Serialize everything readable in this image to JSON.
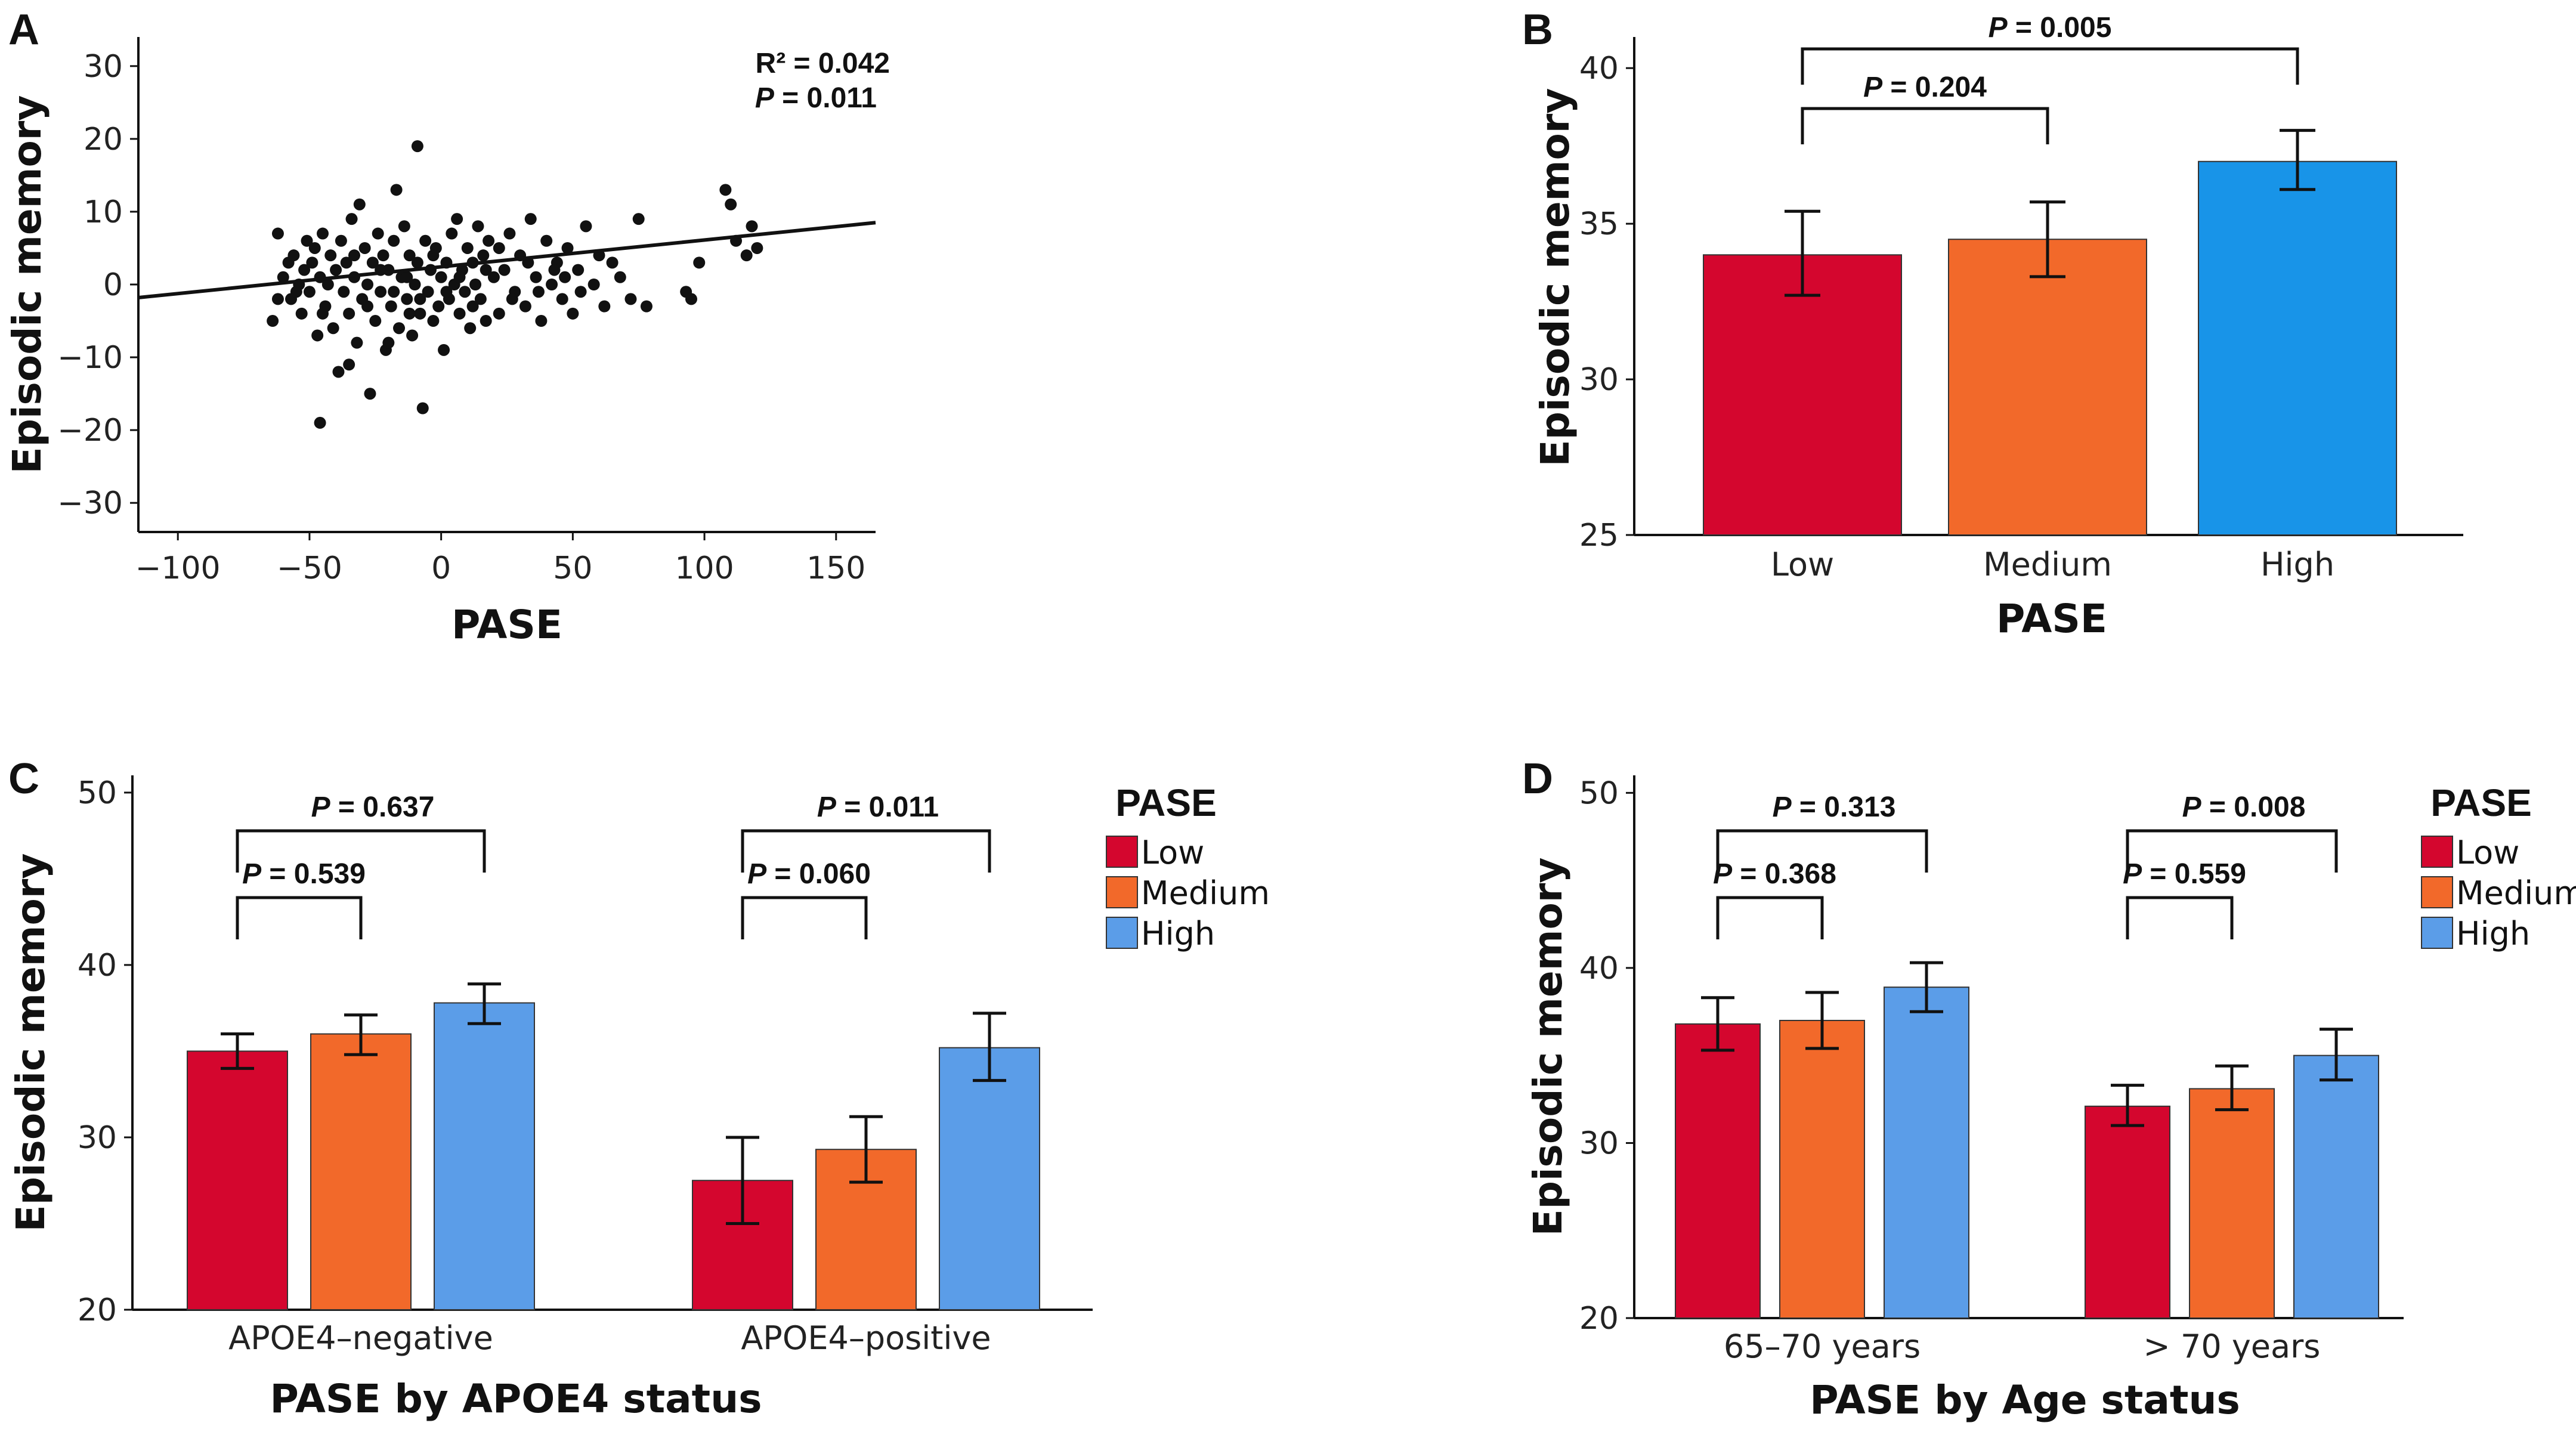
{
  "colors": {
    "low": "#d4062e",
    "medium": "#f2692a",
    "high_b": "#1894e8",
    "high": "#5b9de8",
    "ink": "#111111"
  },
  "chart_data": [
    {
      "panel": "A",
      "type": "scatter",
      "xlabel": "PASE",
      "ylabel": "Episodic memory",
      "xlim": [
        -115,
        165
      ],
      "ylim": [
        -34,
        34
      ],
      "xticks": [
        -100,
        -50,
        0,
        50,
        100,
        150
      ],
      "yticks": [
        -30,
        -20,
        -10,
        0,
        10,
        20,
        30
      ],
      "xtick_labels": [
        "−100",
        "−50",
        "0",
        "50",
        "100",
        "150"
      ],
      "ytick_labels": [
        "−30",
        "−20",
        "−10",
        "0",
        "10",
        "20",
        "30"
      ],
      "stats": {
        "r2_label": "R² = 0.042",
        "p_italic": "P",
        "p_value": " =  0.011"
      },
      "fit_line": {
        "x": [
          -115,
          165
        ],
        "y": [
          -1.8,
          8.5
        ]
      },
      "points": [
        [
          -64,
          -5
        ],
        [
          -62,
          7
        ],
        [
          -60,
          1
        ],
        [
          -58,
          3
        ],
        [
          -57,
          -2
        ],
        [
          -56,
          4
        ],
        [
          -54,
          0
        ],
        [
          -53,
          -4
        ],
        [
          -52,
          2
        ],
        [
          -51,
          6
        ],
        [
          -50,
          -1
        ],
        [
          -49,
          3
        ],
        [
          -48,
          5
        ],
        [
          -47,
          -7
        ],
        [
          -46,
          1
        ],
        [
          -46,
          -19
        ],
        [
          -45,
          7
        ],
        [
          -44,
          -3
        ],
        [
          -43,
          0
        ],
        [
          -42,
          4
        ],
        [
          -41,
          -6
        ],
        [
          -40,
          2
        ],
        [
          -39,
          -12
        ],
        [
          -38,
          6
        ],
        [
          -37,
          -1
        ],
        [
          -36,
          3
        ],
        [
          -35,
          -4
        ],
        [
          -34,
          9
        ],
        [
          -33,
          1
        ],
        [
          -32,
          -8
        ],
        [
          -31,
          11
        ],
        [
          -30,
          -2
        ],
        [
          -29,
          5
        ],
        [
          -28,
          0
        ],
        [
          -27,
          -15
        ],
        [
          -26,
          3
        ],
        [
          -25,
          -5
        ],
        [
          -24,
          7
        ],
        [
          -23,
          -1
        ],
        [
          -22,
          4
        ],
        [
          -21,
          -9
        ],
        [
          -20,
          2
        ],
        [
          -19,
          -3
        ],
        [
          -18,
          6
        ],
        [
          -17,
          13
        ],
        [
          -16,
          -6
        ],
        [
          -15,
          1
        ],
        [
          -14,
          8
        ],
        [
          -13,
          -2
        ],
        [
          -12,
          4
        ],
        [
          -11,
          -7
        ],
        [
          -10,
          0
        ],
        [
          -9,
          3
        ],
        [
          -8,
          -4
        ],
        [
          -7,
          -17
        ],
        [
          -6,
          6
        ],
        [
          -5,
          -1
        ],
        [
          -4,
          2
        ],
        [
          -3,
          -5
        ],
        [
          -2,
          5
        ],
        [
          -1,
          -3
        ],
        [
          0,
          1
        ],
        [
          1,
          -9
        ],
        [
          2,
          3
        ],
        [
          3,
          -2
        ],
        [
          4,
          7
        ],
        [
          5,
          0
        ],
        [
          6,
          9
        ],
        [
          7,
          -4
        ],
        [
          8,
          2
        ],
        [
          9,
          -1
        ],
        [
          10,
          5
        ],
        [
          11,
          -6
        ],
        [
          12,
          3
        ],
        [
          13,
          0
        ],
        [
          14,
          8
        ],
        [
          15,
          -2
        ],
        [
          16,
          4
        ],
        [
          17,
          -5
        ],
        [
          18,
          6
        ],
        [
          -9,
          19
        ],
        [
          -62,
          -2
        ],
        [
          -35,
          -11
        ],
        [
          -20,
          -8
        ],
        [
          -12,
          -4
        ],
        [
          20,
          1
        ],
        [
          22,
          -4
        ],
        [
          24,
          2
        ],
        [
          26,
          7
        ],
        [
          28,
          -1
        ],
        [
          30,
          4
        ],
        [
          32,
          -3
        ],
        [
          34,
          9
        ],
        [
          36,
          1
        ],
        [
          38,
          -5
        ],
        [
          40,
          6
        ],
        [
          42,
          0
        ],
        [
          44,
          3
        ],
        [
          46,
          -2
        ],
        [
          48,
          5
        ],
        [
          50,
          -4
        ],
        [
          52,
          2
        ],
        [
          55,
          8
        ],
        [
          58,
          0
        ],
        [
          60,
          4
        ],
        [
          62,
          -3
        ],
        [
          65,
          3
        ],
        [
          68,
          1
        ],
        [
          72,
          -2
        ],
        [
          75,
          9
        ],
        [
          78,
          -3
        ],
        [
          93,
          -1
        ],
        [
          95,
          -2
        ],
        [
          98,
          3
        ],
        [
          108,
          13
        ],
        [
          110,
          11
        ],
        [
          112,
          6
        ],
        [
          116,
          4
        ],
        [
          118,
          8
        ],
        [
          120,
          5
        ],
        [
          -55,
          -1
        ],
        [
          -45,
          -4
        ],
        [
          -33,
          4
        ],
        [
          -28,
          -3
        ],
        [
          -23,
          2
        ],
        [
          -18,
          -1
        ],
        [
          -13,
          1
        ],
        [
          -8,
          -2
        ],
        [
          -3,
          4
        ],
        [
          2,
          -1
        ],
        [
          7,
          1
        ],
        [
          12,
          -3
        ],
        [
          17,
          2
        ],
        [
          22,
          5
        ],
        [
          27,
          -2
        ],
        [
          33,
          3
        ],
        [
          37,
          -1
        ],
        [
          43,
          2
        ],
        [
          47,
          1
        ],
        [
          53,
          -1
        ]
      ]
    },
    {
      "panel": "B",
      "type": "bar",
      "xlabel": "PASE",
      "ylabel": "Episodic memory",
      "categories": [
        "Low",
        "Medium",
        "High"
      ],
      "values": [
        34.0,
        34.5,
        37.0
      ],
      "errors": [
        [
          32.7,
          35.4
        ],
        [
          33.3,
          35.7
        ],
        [
          36.1,
          38.0
        ]
      ],
      "ylim": [
        25,
        41
      ],
      "yticks": [
        25,
        30,
        35,
        40
      ],
      "comparisons": [
        {
          "from": 0,
          "to": 1,
          "p_label": "P",
          "p_value": " = 0.204"
        },
        {
          "from": 0,
          "to": 2,
          "p_label": "P",
          "p_value": " = 0.005"
        }
      ]
    },
    {
      "panel": "C",
      "type": "bar",
      "xlabel": "PASE by APOE4 status",
      "ylabel": "Episodic memory",
      "categories": [
        "APOE4–negative",
        "APOE4–positive"
      ],
      "series": [
        {
          "name": "Low",
          "values": [
            35.0,
            27.5
          ],
          "errors": [
            [
              34.0,
              36.0
            ],
            [
              25.0,
              30.0
            ]
          ]
        },
        {
          "name": "Medium",
          "values": [
            36.0,
            29.3
          ],
          "errors": [
            [
              34.8,
              37.1
            ],
            [
              27.4,
              31.2
            ]
          ]
        },
        {
          "name": "High",
          "values": [
            37.8,
            35.2
          ],
          "errors": [
            [
              36.6,
              38.9
            ],
            [
              33.3,
              37.2
            ]
          ]
        }
      ],
      "ylim": [
        20,
        51
      ],
      "yticks": [
        20,
        30,
        40,
        50
      ],
      "legend_title": "PASE",
      "legend": [
        "Low",
        "Medium",
        "High"
      ],
      "comparisons": [
        {
          "group": 0,
          "from": 0,
          "to": 1,
          "p_label": "P",
          "p_value": " = 0.539"
        },
        {
          "group": 0,
          "from": 0,
          "to": 2,
          "p_label": "P",
          "p_value": " = 0.637"
        },
        {
          "group": 1,
          "from": 0,
          "to": 1,
          "p_label": "P",
          "p_value": " = 0.060"
        },
        {
          "group": 1,
          "from": 0,
          "to": 2,
          "p_label": "P",
          "p_value": " = 0.011"
        }
      ]
    },
    {
      "panel": "D",
      "type": "bar",
      "xlabel": "PASE by Age status",
      "ylabel": "Episodic memory",
      "categories": [
        "65–70 years",
        "> 70 years"
      ],
      "series": [
        {
          "name": "Low",
          "values": [
            36.8,
            32.1
          ],
          "errors": [
            [
              35.3,
              38.3
            ],
            [
              31.0,
              33.3
            ]
          ]
        },
        {
          "name": "Medium",
          "values": [
            37.0,
            33.1
          ],
          "errors": [
            [
              35.4,
              38.6
            ],
            [
              31.9,
              34.4
            ]
          ]
        },
        {
          "name": "High",
          "values": [
            38.9,
            35.0
          ],
          "errors": [
            [
              37.5,
              40.3
            ],
            [
              33.6,
              36.5
            ]
          ]
        }
      ],
      "ylim": [
        20,
        51
      ],
      "yticks": [
        20,
        30,
        40,
        50
      ],
      "legend_title": "PASE",
      "legend": [
        "Low",
        "Medium",
        "High"
      ],
      "comparisons": [
        {
          "group": 0,
          "from": 0,
          "to": 1,
          "p_label": "P",
          "p_value": " = 0.368"
        },
        {
          "group": 0,
          "from": 0,
          "to": 2,
          "p_label": "P",
          "p_value": " = 0.313"
        },
        {
          "group": 1,
          "from": 0,
          "to": 1,
          "p_label": "P",
          "p_value": " = 0.559"
        },
        {
          "group": 1,
          "from": 0,
          "to": 2,
          "p_label": "P",
          "p_value": " = 0.008"
        }
      ]
    }
  ]
}
